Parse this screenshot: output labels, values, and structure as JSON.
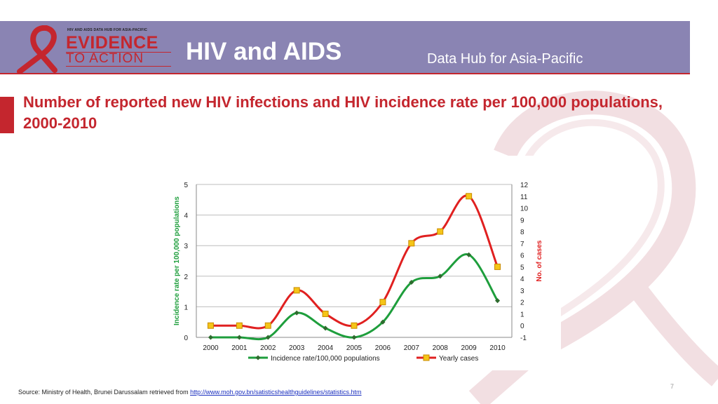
{
  "header": {
    "logo": {
      "small_text": "HIV AND AIDS DATA HUB FOR ASIA-PACIFIC",
      "line1": "EVIDENCE",
      "line2": "TO ACTION",
      "ribbon_color": "#c4262e"
    },
    "title": "HIV and AIDS",
    "subtitle": "Data Hub for Asia-Pacific",
    "bg_color": "#8a84b3"
  },
  "slide": {
    "title": "Number of reported new HIV infections and HIV incidence rate per 100,000 populations, 2000-2010",
    "accent_color": "#c4262e"
  },
  "chart_data": {
    "type": "line",
    "categories": [
      "2000",
      "2001",
      "2002",
      "2003",
      "2004",
      "2005",
      "2006",
      "2007",
      "2008",
      "2009",
      "2010"
    ],
    "series": [
      {
        "name": "Incidence rate/100,000 populations",
        "axis": "left",
        "color": "#1e9e3c",
        "marker": "diamond",
        "values": [
          0,
          0,
          0,
          0.8,
          0.3,
          0,
          0.5,
          1.8,
          2.0,
          2.7,
          1.2
        ]
      },
      {
        "name": "Yearly cases",
        "axis": "right",
        "color": "#e02020",
        "marker": "square",
        "values": [
          0,
          0,
          0,
          3,
          1,
          0,
          2,
          7,
          8,
          11,
          5
        ]
      }
    ],
    "ylabel": "Incidence rate per 100,000 populations",
    "ylabel_right": "No. of cases",
    "ylim": [
      0,
      5
    ],
    "yticks": [
      "0",
      "1",
      "2",
      "3",
      "4",
      "5"
    ],
    "ylim_right": [
      -1,
      12
    ],
    "yticks_right": [
      "-1",
      "0",
      "1",
      "2",
      "3",
      "4",
      "5",
      "6",
      "7",
      "8",
      "9",
      "10",
      "11",
      "12"
    ],
    "grid": true,
    "legend_position": "bottom"
  },
  "footer": {
    "source_prefix": "Source: Ministry of Health, Brunei Darussalam retrieved from ",
    "source_link": "http://www.moh.gov.bn/satisticshealthguidelines/statistics.htm"
  },
  "page_number": "7"
}
